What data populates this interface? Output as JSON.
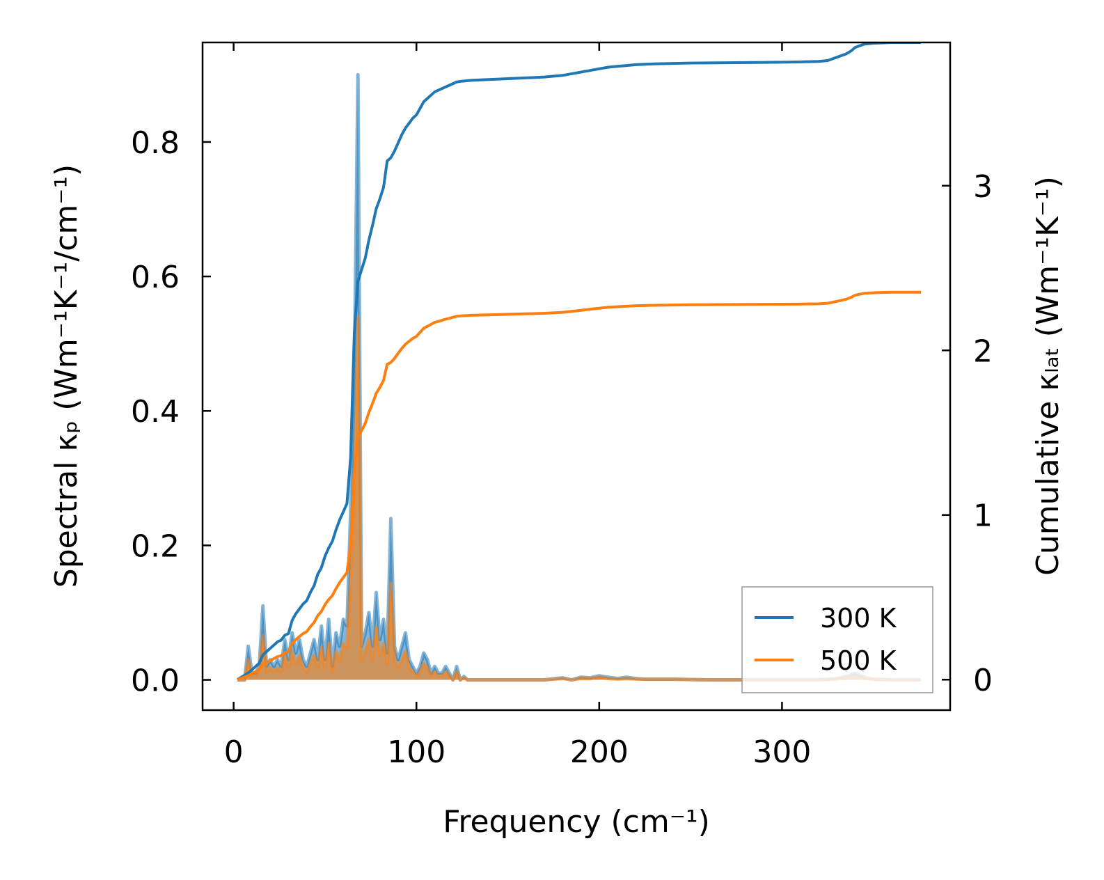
{
  "chart_data": {
    "type": "line",
    "xlabel": "Frequency (cm⁻¹)",
    "ylabel_left": "Spectral κₚ (Wm⁻¹K⁻¹/cm⁻¹)",
    "ylabel_right": "Cumulative κₗₐₜ (Wm⁻¹K⁻¹)",
    "xlim": [
      -17,
      392
    ],
    "ylim_left": [
      -0.045,
      0.948
    ],
    "ylim_right": [
      -0.185,
      3.87
    ],
    "x_ticks": [
      0,
      100,
      200,
      300
    ],
    "x_tick_labels": [
      "0",
      "100",
      "200",
      "300"
    ],
    "y_ticks_left": [
      0.0,
      0.2,
      0.4,
      0.6,
      0.8
    ],
    "y_tick_labels_left": [
      "0.0",
      "0.2",
      "0.4",
      "0.6",
      "0.8"
    ],
    "y_ticks_right": [
      0,
      1,
      2,
      3
    ],
    "y_tick_labels_right": [
      "0",
      "1",
      "2",
      "3"
    ],
    "legend_location": "lower right",
    "series": [
      {
        "name": "300 K",
        "color": "#1f77b4",
        "spectral": {
          "x": [
            2,
            6,
            8,
            10,
            12,
            14,
            16,
            18,
            20,
            22,
            24,
            26,
            28,
            30,
            32,
            34,
            36,
            38,
            40,
            42,
            44,
            46,
            48,
            50,
            52,
            54,
            56,
            58,
            60,
            62,
            64,
            66,
            68,
            70,
            72,
            74,
            76,
            78,
            80,
            82,
            84,
            86,
            88,
            90,
            92,
            94,
            96,
            98,
            100,
            102,
            104,
            106,
            108,
            110,
            112,
            114,
            116,
            118,
            120,
            122,
            124,
            126,
            128,
            130,
            135,
            150,
            170,
            180,
            185,
            190,
            195,
            200,
            205,
            210,
            215,
            220,
            225,
            240,
            260,
            280,
            300,
            320,
            330,
            335,
            340,
            345,
            350,
            360,
            376
          ],
          "y": [
            0.0,
            0.0,
            0.05,
            0.01,
            0.01,
            0.02,
            0.11,
            0.02,
            0.03,
            0.02,
            0.03,
            0.02,
            0.06,
            0.03,
            0.07,
            0.04,
            0.06,
            0.03,
            0.02,
            0.04,
            0.06,
            0.03,
            0.08,
            0.03,
            0.09,
            0.02,
            0.07,
            0.05,
            0.09,
            0.08,
            0.25,
            0.45,
            0.9,
            0.05,
            0.07,
            0.1,
            0.05,
            0.13,
            0.06,
            0.09,
            0.04,
            0.24,
            0.05,
            0.03,
            0.05,
            0.07,
            0.03,
            0.02,
            0.01,
            0.02,
            0.04,
            0.03,
            0.01,
            0.02,
            0.01,
            0.01,
            0.02,
            0.01,
            0.0,
            0.02,
            0.0,
            0.005,
            0.0,
            0.0,
            0.0,
            0.0,
            0.0,
            0.003,
            0.0,
            0.004,
            0.003,
            0.006,
            0.004,
            0.002,
            0.004,
            0.002,
            0.001,
            0.001,
            0.0,
            0.0,
            0.0,
            0.0,
            0.002,
            0.005,
            0.01,
            0.004,
            0.001,
            0.0,
            0.0
          ]
        },
        "cumulative": {
          "x": [
            2,
            5,
            8,
            10,
            12,
            14,
            16,
            18,
            20,
            22,
            24,
            26,
            28,
            30,
            32,
            34,
            36,
            38,
            40,
            42,
            44,
            46,
            48,
            50,
            52,
            54,
            56,
            58,
            60,
            62,
            64,
            66,
            68,
            70,
            72,
            74,
            76,
            78,
            80,
            82,
            84,
            86,
            88,
            90,
            92,
            94,
            96,
            98,
            100,
            102,
            104,
            106,
            108,
            110,
            112,
            114,
            116,
            118,
            120,
            122,
            125,
            130,
            150,
            170,
            180,
            190,
            195,
            200,
            205,
            210,
            215,
            220,
            230,
            250,
            280,
            300,
            310,
            320,
            325,
            330,
            335,
            338,
            340,
            345,
            350,
            360,
            376
          ],
          "y": [
            0.0,
            0.02,
            0.04,
            0.06,
            0.08,
            0.1,
            0.15,
            0.17,
            0.19,
            0.21,
            0.23,
            0.24,
            0.27,
            0.28,
            0.36,
            0.4,
            0.43,
            0.46,
            0.48,
            0.53,
            0.57,
            0.64,
            0.68,
            0.75,
            0.8,
            0.84,
            0.91,
            0.97,
            1.02,
            1.07,
            1.35,
            2.1,
            2.42,
            2.49,
            2.56,
            2.67,
            2.76,
            2.86,
            2.92,
            2.99,
            3.15,
            3.17,
            3.21,
            3.26,
            3.31,
            3.35,
            3.38,
            3.41,
            3.43,
            3.47,
            3.51,
            3.53,
            3.55,
            3.57,
            3.58,
            3.59,
            3.6,
            3.61,
            3.62,
            3.63,
            3.635,
            3.64,
            3.65,
            3.66,
            3.67,
            3.69,
            3.7,
            3.71,
            3.72,
            3.725,
            3.73,
            3.735,
            3.74,
            3.745,
            3.748,
            3.75,
            3.752,
            3.755,
            3.76,
            3.78,
            3.8,
            3.82,
            3.84,
            3.86,
            3.865,
            3.87,
            3.87
          ]
        }
      },
      {
        "name": "500 K",
        "color": "#ff7f0e",
        "spectral": {
          "x": [
            2,
            6,
            8,
            10,
            12,
            14,
            16,
            18,
            20,
            22,
            24,
            26,
            28,
            30,
            32,
            34,
            36,
            38,
            40,
            42,
            44,
            46,
            48,
            50,
            52,
            54,
            56,
            58,
            60,
            62,
            64,
            66,
            68,
            70,
            72,
            74,
            76,
            78,
            80,
            82,
            84,
            86,
            88,
            90,
            92,
            94,
            96,
            98,
            100,
            102,
            104,
            106,
            108,
            110,
            112,
            114,
            116,
            118,
            120,
            122,
            124,
            126,
            128,
            130,
            135,
            150,
            170,
            180,
            185,
            190,
            195,
            200,
            205,
            210,
            215,
            220,
            225,
            240,
            260,
            280,
            300,
            320,
            330,
            335,
            340,
            345,
            350,
            360,
            376
          ],
          "y": [
            0.0,
            0.0,
            0.03,
            0.006,
            0.006,
            0.012,
            0.066,
            0.012,
            0.018,
            0.012,
            0.018,
            0.012,
            0.036,
            0.018,
            0.042,
            0.024,
            0.036,
            0.018,
            0.012,
            0.024,
            0.036,
            0.018,
            0.048,
            0.018,
            0.054,
            0.012,
            0.042,
            0.03,
            0.054,
            0.048,
            0.15,
            0.27,
            0.54,
            0.03,
            0.042,
            0.06,
            0.03,
            0.078,
            0.036,
            0.054,
            0.024,
            0.144,
            0.03,
            0.018,
            0.03,
            0.042,
            0.018,
            0.012,
            0.006,
            0.012,
            0.024,
            0.018,
            0.006,
            0.012,
            0.006,
            0.006,
            0.012,
            0.006,
            0.0,
            0.012,
            0.0,
            0.003,
            0.0,
            0.0,
            0.0,
            0.0,
            0.0,
            0.002,
            0.0,
            0.002,
            0.002,
            0.004,
            0.002,
            0.001,
            0.002,
            0.001,
            0.001,
            0.001,
            0.0,
            0.0,
            0.0,
            0.0,
            0.001,
            0.003,
            0.006,
            0.002,
            0.001,
            0.0,
            0.0
          ]
        },
        "cumulative": {
          "x": [
            2,
            5,
            8,
            10,
            12,
            14,
            16,
            18,
            20,
            22,
            24,
            26,
            28,
            30,
            32,
            34,
            36,
            38,
            40,
            42,
            44,
            46,
            48,
            50,
            52,
            54,
            56,
            58,
            60,
            62,
            64,
            66,
            68,
            70,
            72,
            74,
            76,
            78,
            80,
            82,
            84,
            86,
            88,
            90,
            92,
            94,
            96,
            98,
            100,
            102,
            104,
            106,
            108,
            110,
            112,
            114,
            116,
            118,
            120,
            122,
            125,
            130,
            150,
            170,
            180,
            190,
            195,
            200,
            205,
            210,
            215,
            220,
            230,
            250,
            280,
            300,
            310,
            320,
            325,
            330,
            335,
            338,
            340,
            345,
            350,
            360,
            376
          ],
          "y": [
            0.0,
            0.012,
            0.024,
            0.036,
            0.049,
            0.061,
            0.091,
            0.103,
            0.116,
            0.128,
            0.14,
            0.146,
            0.164,
            0.17,
            0.219,
            0.243,
            0.262,
            0.28,
            0.292,
            0.322,
            0.347,
            0.389,
            0.414,
            0.456,
            0.487,
            0.511,
            0.553,
            0.59,
            0.62,
            0.651,
            0.821,
            1.277,
            1.471,
            1.514,
            1.556,
            1.623,
            1.678,
            1.739,
            1.775,
            1.818,
            1.915,
            1.927,
            1.951,
            1.982,
            2.012,
            2.037,
            2.055,
            2.073,
            2.085,
            2.11,
            2.134,
            2.146,
            2.158,
            2.17,
            2.176,
            2.183,
            2.189,
            2.195,
            2.201,
            2.207,
            2.21,
            2.213,
            2.219,
            2.225,
            2.231,
            2.243,
            2.25,
            2.256,
            2.262,
            2.265,
            2.268,
            2.271,
            2.274,
            2.277,
            2.279,
            2.28,
            2.281,
            2.283,
            2.286,
            2.298,
            2.31,
            2.323,
            2.335,
            2.347,
            2.35,
            2.353,
            2.353
          ]
        }
      }
    ]
  }
}
